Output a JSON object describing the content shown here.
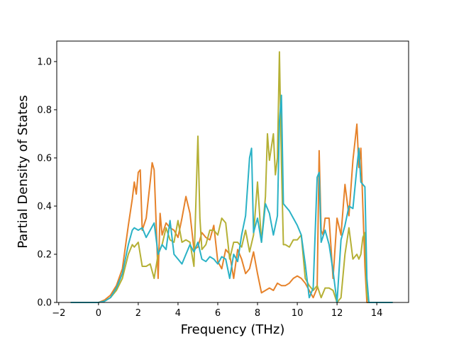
{
  "chart_data": {
    "type": "line",
    "xlabel": "Frequency (THz)",
    "ylabel": "Partial Density of States",
    "xlim": [
      -2.1,
      15.6
    ],
    "ylim": [
      0.0,
      1.085
    ],
    "xticks": [
      -2,
      0,
      2,
      4,
      6,
      8,
      10,
      12,
      14
    ],
    "xtick_labels": [
      "−2",
      "0",
      "2",
      "4",
      "6",
      "8",
      "10",
      "12",
      "14"
    ],
    "yticks": [
      0.0,
      0.2,
      0.4,
      0.6,
      0.8,
      1.0
    ],
    "ytick_labels": [
      "0.0",
      "0.2",
      "0.4",
      "0.6",
      "0.8",
      "1.0"
    ],
    "grid": false,
    "legend": "none",
    "series": [
      {
        "color": "#e6822a",
        "x": [
          -1.4,
          0.0,
          0.3,
          0.6,
          0.9,
          1.2,
          1.5,
          1.7,
          1.8,
          1.9,
          2.0,
          2.1,
          2.2,
          2.4,
          2.6,
          2.7,
          2.8,
          2.9,
          3.0,
          3.1,
          3.2,
          3.4,
          3.6,
          3.8,
          4.0,
          4.2,
          4.4,
          4.6,
          4.8,
          5.0,
          5.2,
          5.4,
          5.6,
          5.8,
          6.0,
          6.2,
          6.4,
          6.6,
          6.8,
          7.0,
          7.2,
          7.4,
          7.6,
          7.8,
          8.0,
          8.2,
          8.4,
          8.6,
          8.8,
          9.0,
          9.2,
          9.4,
          9.6,
          9.8,
          10.0,
          10.2,
          10.4,
          10.6,
          10.8,
          11.0,
          11.1,
          11.2,
          11.3,
          11.4,
          11.6,
          11.8,
          12.0,
          12.2,
          12.4,
          12.6,
          12.8,
          13.0,
          13.1,
          13.2,
          13.3,
          13.4,
          13.5,
          13.6,
          14.8
        ],
        "y": [
          0.0,
          0.0,
          0.01,
          0.03,
          0.07,
          0.14,
          0.32,
          0.43,
          0.5,
          0.45,
          0.54,
          0.55,
          0.3,
          0.35,
          0.5,
          0.58,
          0.55,
          0.33,
          0.1,
          0.37,
          0.28,
          0.33,
          0.31,
          0.3,
          0.27,
          0.35,
          0.44,
          0.37,
          0.22,
          0.23,
          0.29,
          0.27,
          0.26,
          0.32,
          0.17,
          0.14,
          0.22,
          0.2,
          0.1,
          0.22,
          0.18,
          0.12,
          0.14,
          0.21,
          0.12,
          0.04,
          0.05,
          0.06,
          0.05,
          0.08,
          0.07,
          0.07,
          0.08,
          0.1,
          0.11,
          0.1,
          0.08,
          0.05,
          0.02,
          0.06,
          0.63,
          0.3,
          0.28,
          0.35,
          0.35,
          0.1,
          0.35,
          0.28,
          0.49,
          0.36,
          0.59,
          0.74,
          0.56,
          0.64,
          0.4,
          0.15,
          0.0,
          0.0,
          0.0
        ]
      },
      {
        "color": "#b5b035",
        "x": [
          -1.4,
          0.0,
          0.3,
          0.6,
          0.9,
          1.2,
          1.5,
          1.7,
          1.8,
          2.0,
          2.2,
          2.4,
          2.6,
          2.8,
          3.0,
          3.2,
          3.4,
          3.6,
          3.8,
          4.0,
          4.2,
          4.4,
          4.6,
          4.8,
          5.0,
          5.1,
          5.2,
          5.4,
          5.6,
          5.8,
          6.0,
          6.2,
          6.4,
          6.6,
          6.8,
          7.0,
          7.2,
          7.4,
          7.6,
          7.8,
          8.0,
          8.2,
          8.4,
          8.5,
          8.6,
          8.8,
          8.9,
          9.0,
          9.1,
          9.2,
          9.3,
          9.4,
          9.6,
          9.8,
          10.0,
          10.2,
          10.4,
          10.6,
          10.8,
          11.0,
          11.2,
          11.4,
          11.6,
          11.8,
          12.0,
          12.2,
          12.4,
          12.6,
          12.8,
          13.0,
          13.1,
          13.2,
          13.3,
          13.4,
          13.5,
          13.6,
          14.8
        ],
        "y": [
          0.0,
          0.0,
          0.005,
          0.02,
          0.05,
          0.1,
          0.2,
          0.24,
          0.23,
          0.25,
          0.15,
          0.15,
          0.16,
          0.1,
          0.2,
          0.24,
          0.31,
          0.26,
          0.25,
          0.34,
          0.25,
          0.26,
          0.25,
          0.15,
          0.69,
          0.35,
          0.22,
          0.24,
          0.3,
          0.3,
          0.28,
          0.35,
          0.33,
          0.18,
          0.25,
          0.25,
          0.23,
          0.3,
          0.21,
          0.28,
          0.5,
          0.25,
          0.44,
          0.7,
          0.59,
          0.7,
          0.53,
          0.6,
          1.04,
          0.58,
          0.24,
          0.24,
          0.23,
          0.26,
          0.26,
          0.28,
          0.1,
          0.07,
          0.05,
          0.07,
          0.02,
          0.06,
          0.06,
          0.05,
          0.0,
          0.02,
          0.2,
          0.31,
          0.18,
          0.2,
          0.18,
          0.2,
          0.27,
          0.29,
          0.03,
          0.0,
          0.0
        ]
      },
      {
        "color": "#2ab2c6",
        "x": [
          -1.4,
          0.0,
          0.3,
          0.6,
          0.9,
          1.2,
          1.5,
          1.7,
          1.8,
          2.0,
          2.2,
          2.4,
          2.6,
          2.8,
          3.0,
          3.2,
          3.4,
          3.6,
          3.8,
          4.0,
          4.2,
          4.4,
          4.6,
          4.8,
          5.0,
          5.2,
          5.4,
          5.6,
          5.8,
          6.0,
          6.2,
          6.4,
          6.6,
          6.8,
          7.0,
          7.2,
          7.4,
          7.6,
          7.7,
          7.8,
          8.0,
          8.2,
          8.4,
          8.6,
          8.8,
          9.0,
          9.1,
          9.2,
          9.3,
          9.4,
          9.6,
          9.8,
          10.0,
          10.2,
          10.4,
          10.6,
          10.8,
          11.0,
          11.1,
          11.2,
          11.4,
          11.6,
          11.8,
          12.0,
          12.2,
          12.4,
          12.6,
          12.8,
          13.0,
          13.1,
          13.2,
          13.3,
          13.4,
          13.5,
          13.6,
          14.8
        ],
        "y": [
          0.0,
          0.0,
          0.005,
          0.02,
          0.06,
          0.12,
          0.24,
          0.3,
          0.31,
          0.3,
          0.31,
          0.27,
          0.3,
          0.33,
          0.2,
          0.24,
          0.22,
          0.34,
          0.2,
          0.18,
          0.16,
          0.2,
          0.24,
          0.21,
          0.25,
          0.18,
          0.17,
          0.19,
          0.18,
          0.16,
          0.19,
          0.18,
          0.1,
          0.2,
          0.17,
          0.28,
          0.36,
          0.6,
          0.64,
          0.29,
          0.35,
          0.25,
          0.41,
          0.37,
          0.28,
          0.36,
          0.75,
          0.86,
          0.41,
          0.4,
          0.38,
          0.35,
          0.32,
          0.28,
          0.16,
          0.02,
          0.06,
          0.52,
          0.54,
          0.25,
          0.3,
          0.24,
          0.13,
          0.0,
          0.26,
          0.32,
          0.4,
          0.39,
          0.56,
          0.64,
          0.5,
          0.49,
          0.48,
          0.1,
          0.0,
          0.0
        ]
      }
    ]
  }
}
